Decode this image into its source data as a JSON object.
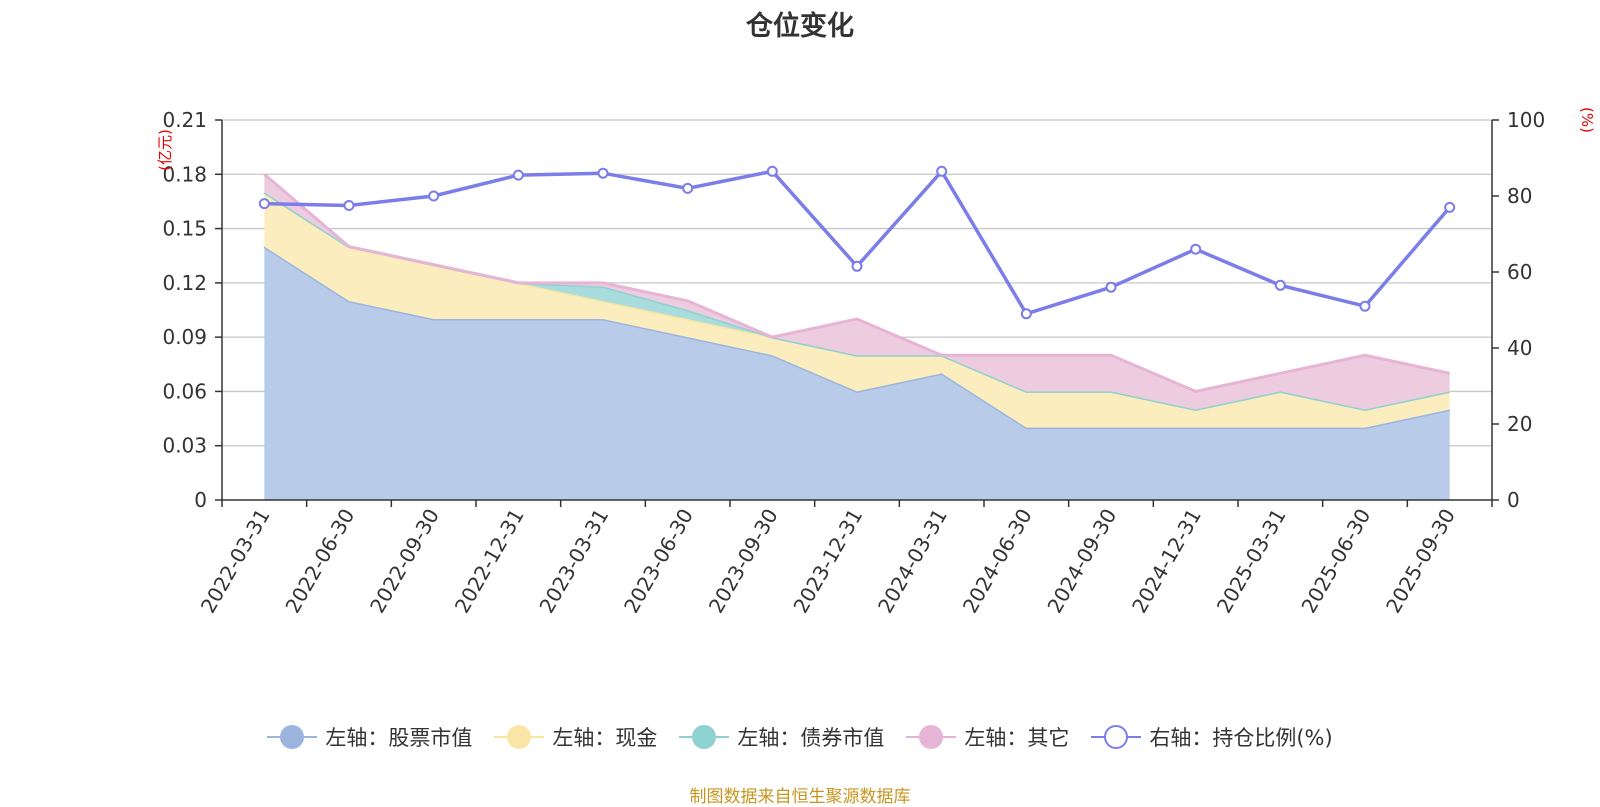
{
  "chart_data": {
    "type": "area",
    "title": "仓位变化",
    "categories": [
      "2022-03-31",
      "2022-06-30",
      "2022-09-30",
      "2022-12-31",
      "2023-03-31",
      "2023-06-30",
      "2023-09-30",
      "2023-12-31",
      "2024-03-31",
      "2024-06-30",
      "2024-09-30",
      "2024-12-31",
      "2025-03-31",
      "2025-06-30",
      "2025-09-30"
    ],
    "x_tick_labels": [
      "2022-03-31",
      "2022-06-30",
      "2022-09-30",
      "2022-12-31",
      "2023-03-31",
      "2023-06-30",
      "2023-09-30",
      "2023-12-31",
      "2024-03-31",
      "2024-06-30",
      "2024-09-30",
      "2024-12-31",
      "2025-03-31",
      "2025-06-30",
      "2025-09-30"
    ],
    "left_axis": {
      "unit": "(亿元)",
      "range": [
        0,
        0.21
      ],
      "ticks": [
        "0",
        "0.03",
        "0.06",
        "0.09",
        "0.12",
        "0.15",
        "0.18",
        "0.21"
      ]
    },
    "right_axis": {
      "unit": "(%)",
      "range": [
        0,
        100
      ],
      "ticks": [
        "0",
        "20",
        "40",
        "60",
        "80",
        "100"
      ]
    },
    "stacked_series": [
      {
        "name": "左轴：股票市值",
        "color": "#9bb5e0",
        "fill": "#b8cbe9",
        "values": [
          0.14,
          0.11,
          0.1,
          0.1,
          0.1,
          0.09,
          0.08,
          0.06,
          0.07,
          0.04,
          0.04,
          0.04,
          0.04,
          0.04,
          0.05
        ]
      },
      {
        "name": "左轴：现金",
        "color": "#f7e6a1",
        "fill": "#fbedbe",
        "values": [
          0.03,
          0.03,
          0.03,
          0.02,
          0.01,
          0.01,
          0.01,
          0.02,
          0.01,
          0.02,
          0.02,
          0.01,
          0.02,
          0.01,
          0.01
        ]
      },
      {
        "name": "左轴：债券市值",
        "color": "#8fd1d1",
        "fill": "#a9dcdc",
        "values": [
          0,
          0,
          0,
          0,
          0.008,
          0.005,
          0,
          0,
          0,
          0,
          0,
          0,
          0,
          0,
          0
        ]
      },
      {
        "name": "左轴：其它",
        "color": "#e6b5d6",
        "fill": "#eeccdf",
        "values": [
          0.01,
          0,
          0,
          0,
          0.002,
          0.005,
          0,
          0.02,
          0,
          0.02,
          0.02,
          0.01,
          0.01,
          0.03,
          0.01
        ]
      }
    ],
    "line_series": {
      "name": "右轴：持仓比例(%)",
      "color": "#7b7de8",
      "values": [
        78,
        77.5,
        80,
        85.5,
        86,
        82,
        86.5,
        61.5,
        86.5,
        49,
        56,
        66,
        56.5,
        51,
        77
      ]
    },
    "grid": true,
    "legend_position": "bottom"
  },
  "footer": "制图数据来自恒生聚源数据库"
}
